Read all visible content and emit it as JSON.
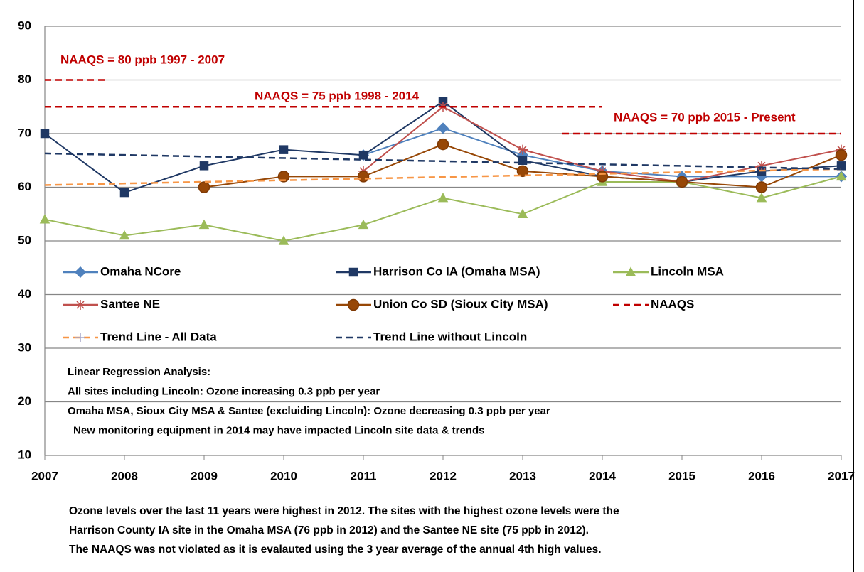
{
  "chart_data": {
    "type": "line",
    "xlim": [
      2007,
      2017
    ],
    "xticks": [
      2007,
      2008,
      2009,
      2010,
      2011,
      2012,
      2013,
      2014,
      2015,
      2016,
      2017
    ],
    "ylim": [
      10,
      90
    ],
    "yticks": [
      10,
      20,
      30,
      40,
      50,
      60,
      70,
      80,
      90
    ],
    "grid": true,
    "series": [
      {
        "name": "Omaha NCore",
        "color": "#4f81bd",
        "marker": "diamond",
        "dash": false,
        "x": [
          2007,
          2008,
          2009,
          2010,
          2011,
          2012,
          2013,
          2014,
          2015,
          2016,
          2017
        ],
        "values": [
          null,
          null,
          null,
          null,
          66,
          71,
          66,
          63,
          62,
          62,
          62
        ]
      },
      {
        "name": "Harrison Co IA (Omaha MSA)",
        "color": "#1f3864",
        "marker": "square",
        "dash": false,
        "x": [
          2007,
          2008,
          2009,
          2010,
          2011,
          2012,
          2013,
          2014,
          2015,
          2016,
          2017
        ],
        "values": [
          70,
          59,
          64,
          67,
          66,
          76,
          65,
          62,
          61,
          63,
          64
        ]
      },
      {
        "name": "Lincoln MSA",
        "color": "#9bbb59",
        "marker": "triangle",
        "dash": false,
        "x": [
          2007,
          2008,
          2009,
          2010,
          2011,
          2012,
          2013,
          2014,
          2015,
          2016,
          2017
        ],
        "values": [
          54,
          51,
          53,
          50,
          53,
          58,
          55,
          61,
          61,
          58,
          62
        ]
      },
      {
        "name": "Santee NE",
        "color": "#c0504d",
        "marker": "star",
        "dash": false,
        "x": [
          2007,
          2008,
          2009,
          2010,
          2011,
          2012,
          2013,
          2014,
          2015,
          2016,
          2017
        ],
        "values": [
          null,
          null,
          null,
          null,
          63,
          75,
          67,
          63,
          61,
          64,
          67
        ]
      },
      {
        "name": "Union Co SD (Sioux City MSA)",
        "color": "#974706",
        "marker": "circle",
        "dash": false,
        "x": [
          2007,
          2008,
          2009,
          2010,
          2011,
          2012,
          2013,
          2014,
          2015,
          2016,
          2017
        ],
        "values": [
          null,
          null,
          60,
          62,
          62,
          68,
          63,
          62,
          61,
          60,
          66
        ]
      },
      {
        "name": "NAAQS",
        "color": "#c00000",
        "marker": "none",
        "dash": true,
        "x": [
          2007,
          2007.8,
          null,
          2007,
          2014,
          null,
          2013.5,
          2017
        ],
        "values": [
          80,
          80,
          null,
          75,
          75,
          null,
          70,
          70
        ]
      },
      {
        "name": "Trend Line - All Data",
        "color": "#f79646",
        "marker": "plus",
        "dash": true,
        "x": [
          2007,
          2017
        ],
        "values": [
          60.4,
          63.4
        ]
      },
      {
        "name": "Trend Line without Lincoln",
        "color": "#1f3864",
        "marker": "none",
        "dash": true,
        "x": [
          2007,
          2017
        ],
        "values": [
          66.3,
          63.4
        ]
      }
    ],
    "annotations": [
      "NAAQS = 80 ppb 1997 - 2007",
      "NAAQS = 75 ppb 1998 - 2014",
      "NAAQS = 70 ppb 2015 - Present"
    ],
    "notes": [
      "Linear Regression Analysis:",
      "All sites including Lincoln:  Ozone increasing 0.3 ppb per year",
      "Omaha MSA, Sioux City MSA & Santee (excluiding Lincoln): Ozone decreasing 0.3 ppb per year",
      "New monitoring equipment in 2014 may have impacted Lincoln site data & trends"
    ],
    "caption": [
      "Ozone levels over the last 11 years were highest in 2012.  The sites with the  highest  ozone levels were the",
      "Harrison County IA site in the Omaha MSA  (76 ppb in 2012) and the Santee NE site (75 ppb in 2012).",
      "The NAAQS was not violated as it is evalauted using the 3 year average of the annual 4th high values."
    ]
  }
}
